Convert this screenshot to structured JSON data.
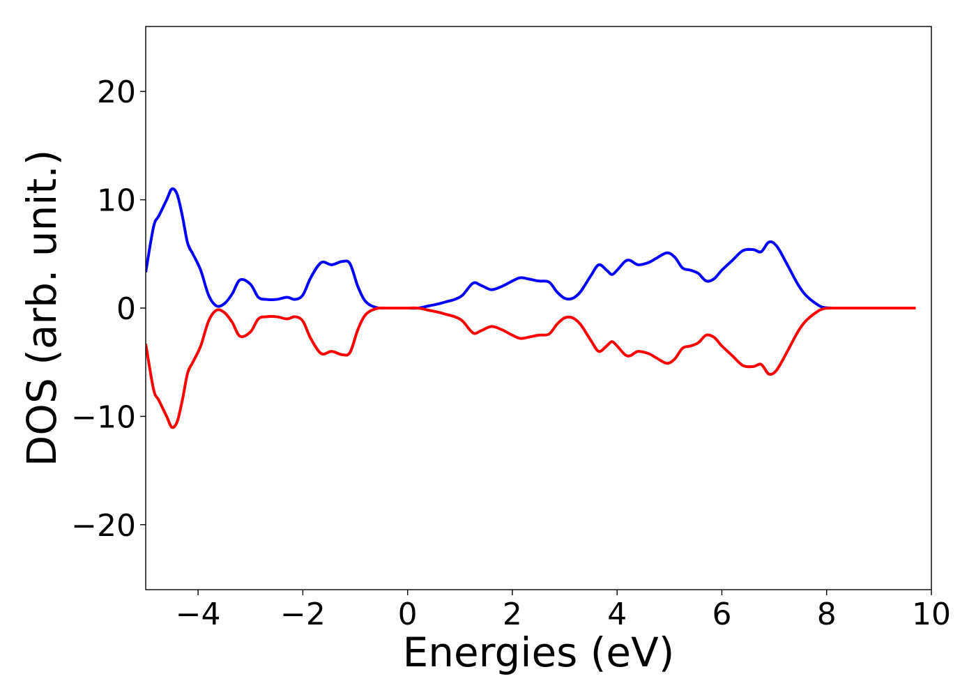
{
  "chart_data": {
    "type": "line",
    "title": "",
    "xlabel": "Energies (eV)",
    "ylabel": "DOS (arb. unit.)",
    "xlim": [
      -5,
      10
    ],
    "ylim": [
      -26,
      26
    ],
    "grid": false,
    "x_ticks": [
      -4,
      -2,
      0,
      2,
      4,
      6,
      8,
      10
    ],
    "x_tick_labels": [
      "−4",
      "−2",
      "0",
      "2",
      "4",
      "6",
      "8",
      "10"
    ],
    "y_ticks": [
      -20,
      -10,
      0,
      10,
      20
    ],
    "y_tick_labels": [
      "−20",
      "−10",
      "0",
      "10",
      "20"
    ],
    "series": [
      {
        "color": "#0000ff",
        "x": [
          -5.0,
          -4.85,
          -4.75,
          -4.6,
          -4.5,
          -4.4,
          -4.3,
          -4.2,
          -4.1,
          -3.95,
          -3.8,
          -3.65,
          -3.5,
          -3.35,
          -3.2,
          -3.0,
          -2.85,
          -2.7,
          -2.5,
          -2.3,
          -2.15,
          -2.0,
          -1.85,
          -1.65,
          -1.45,
          -1.25,
          -1.1,
          -0.95,
          -0.8,
          -0.6,
          -0.4,
          -0.2,
          0.0,
          0.2,
          0.4,
          0.6,
          0.75,
          0.9,
          1.05,
          1.25,
          1.4,
          1.6,
          1.8,
          2.0,
          2.15,
          2.3,
          2.5,
          2.7,
          2.85,
          3.0,
          3.15,
          3.3,
          3.5,
          3.65,
          3.8,
          3.9,
          4.0,
          4.15,
          4.25,
          4.4,
          4.6,
          4.75,
          4.95,
          5.1,
          5.25,
          5.4,
          5.55,
          5.7,
          5.85,
          6.0,
          6.2,
          6.4,
          6.6,
          6.75,
          6.9,
          7.05,
          7.25,
          7.45,
          7.6,
          7.8,
          7.95,
          8.2,
          8.5,
          9.0,
          9.7
        ],
        "y": [
          3.3,
          7.5,
          8.5,
          10.0,
          11.0,
          10.5,
          8.5,
          6.0,
          5.0,
          3.5,
          1.2,
          0.2,
          0.4,
          1.3,
          2.6,
          2.2,
          1.0,
          0.8,
          0.8,
          1.0,
          0.8,
          1.2,
          2.8,
          4.2,
          4.0,
          4.3,
          4.1,
          2.0,
          0.6,
          0.05,
          0.0,
          0.0,
          0.0,
          0.0,
          0.2,
          0.4,
          0.6,
          0.8,
          1.2,
          2.3,
          2.1,
          1.7,
          2.0,
          2.5,
          2.8,
          2.7,
          2.5,
          2.4,
          1.5,
          0.9,
          0.9,
          1.5,
          3.0,
          4.0,
          3.5,
          3.1,
          3.5,
          4.3,
          4.4,
          4.0,
          4.2,
          4.6,
          5.1,
          4.7,
          3.7,
          3.5,
          3.2,
          2.5,
          2.7,
          3.5,
          4.4,
          5.3,
          5.4,
          5.2,
          6.1,
          5.7,
          4.0,
          2.2,
          1.2,
          0.4,
          0.05,
          0.0,
          0.0,
          0.0,
          0.0
        ]
      },
      {
        "color": "#ff0000",
        "x": [
          -5.0,
          -4.85,
          -4.75,
          -4.6,
          -4.5,
          -4.4,
          -4.3,
          -4.2,
          -4.1,
          -3.95,
          -3.8,
          -3.65,
          -3.5,
          -3.35,
          -3.2,
          -3.0,
          -2.85,
          -2.7,
          -2.5,
          -2.3,
          -2.15,
          -2.0,
          -1.85,
          -1.65,
          -1.45,
          -1.25,
          -1.1,
          -0.95,
          -0.8,
          -0.6,
          -0.4,
          -0.2,
          0.0,
          0.2,
          0.4,
          0.6,
          0.75,
          0.9,
          1.05,
          1.25,
          1.4,
          1.6,
          1.8,
          2.0,
          2.15,
          2.3,
          2.5,
          2.7,
          2.85,
          3.0,
          3.15,
          3.3,
          3.5,
          3.65,
          3.8,
          3.9,
          4.0,
          4.15,
          4.25,
          4.4,
          4.6,
          4.75,
          4.95,
          5.1,
          5.25,
          5.4,
          5.55,
          5.7,
          5.85,
          6.0,
          6.2,
          6.4,
          6.6,
          6.75,
          6.9,
          7.05,
          7.25,
          7.45,
          7.6,
          7.8,
          7.95,
          8.2,
          8.5,
          9.0,
          9.7
        ],
        "y": [
          -3.3,
          -7.5,
          -8.5,
          -10.0,
          -11.0,
          -10.5,
          -8.5,
          -6.0,
          -5.0,
          -3.5,
          -1.2,
          -0.2,
          -0.4,
          -1.3,
          -2.6,
          -2.2,
          -1.0,
          -0.8,
          -0.8,
          -1.0,
          -0.8,
          -1.2,
          -2.8,
          -4.2,
          -4.0,
          -4.3,
          -4.1,
          -2.0,
          -0.6,
          -0.05,
          0.0,
          0.0,
          0.0,
          0.0,
          -0.2,
          -0.4,
          -0.6,
          -0.8,
          -1.2,
          -2.3,
          -2.1,
          -1.7,
          -2.0,
          -2.5,
          -2.8,
          -2.7,
          -2.5,
          -2.4,
          -1.5,
          -0.9,
          -0.9,
          -1.5,
          -3.0,
          -4.0,
          -3.5,
          -3.1,
          -3.5,
          -4.3,
          -4.4,
          -4.0,
          -4.2,
          -4.6,
          -5.1,
          -4.7,
          -3.7,
          -3.5,
          -3.2,
          -2.5,
          -2.7,
          -3.5,
          -4.4,
          -5.3,
          -5.4,
          -5.2,
          -6.1,
          -5.7,
          -4.0,
          -2.2,
          -1.2,
          -0.4,
          -0.05,
          0.0,
          0.0,
          0.0,
          0.0
        ]
      }
    ]
  }
}
